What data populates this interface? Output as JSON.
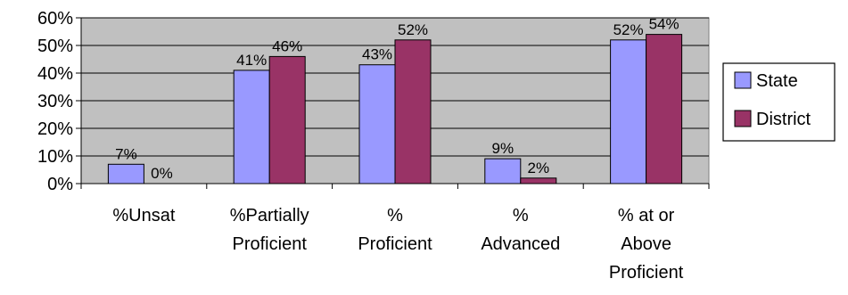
{
  "chart_data": {
    "type": "bar",
    "categories": [
      [
        "%Unsat"
      ],
      [
        "%Partially",
        "Proficient"
      ],
      [
        "%",
        "Proficient"
      ],
      [
        "%",
        "Advanced"
      ],
      [
        "% at or",
        "Above",
        "Proficient"
      ]
    ],
    "series": [
      {
        "name": "State",
        "values": [
          7,
          41,
          43,
          9,
          52
        ],
        "labels": [
          "7%",
          "41%",
          "43%",
          "9%",
          "52%"
        ],
        "color": "#9999ff"
      },
      {
        "name": "District",
        "values": [
          0,
          46,
          52,
          2,
          54
        ],
        "labels": [
          "0%",
          "46%",
          "52%",
          "2%",
          "54%"
        ],
        "color": "#993366"
      }
    ],
    "y_ticks": [
      "0%",
      "10%",
      "20%",
      "30%",
      "40%",
      "50%",
      "60%"
    ],
    "ylim": [
      0,
      60
    ],
    "grid": true,
    "plot_background": "#c0c0c0",
    "legend_position": "right"
  }
}
